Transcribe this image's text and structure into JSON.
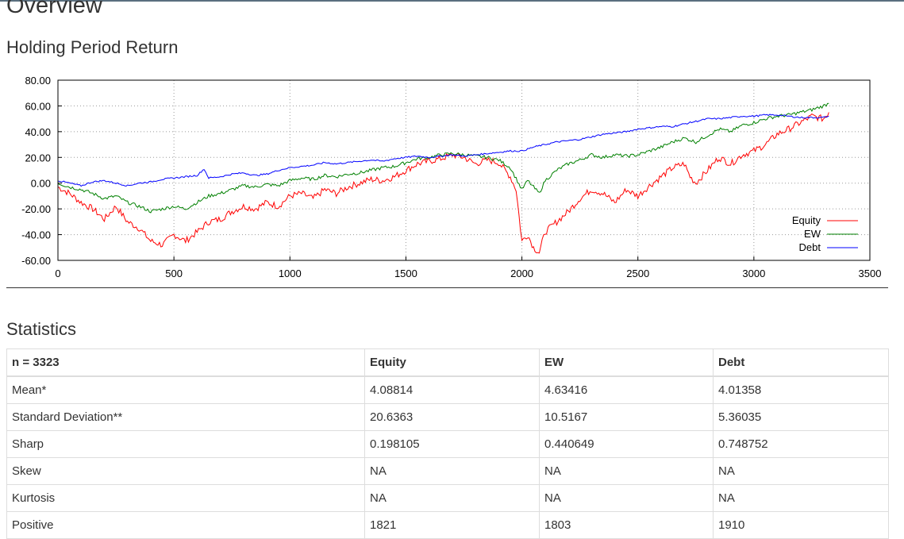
{
  "page": {
    "title": "Overview",
    "chart_section_title": "Holding Period Return",
    "stats_section_title": "Statistics"
  },
  "chart_data": {
    "type": "line",
    "title": "",
    "xlabel": "",
    "ylabel": "",
    "xlim": [
      0,
      3500
    ],
    "ylim": [
      -60,
      80
    ],
    "x_ticks": [
      0,
      500,
      1000,
      1500,
      2000,
      2500,
      3000,
      3500
    ],
    "y_ticks": [
      "-60.00",
      "-40.00",
      "-20.00",
      "0.00",
      "20.00",
      "40.00",
      "60.00",
      "80.00"
    ],
    "grid": true,
    "legend_position": "bottom-right",
    "series": [
      {
        "name": "Equity",
        "color": "#ff0000",
        "x": [
          0,
          50,
          100,
          150,
          200,
          250,
          300,
          350,
          400,
          450,
          500,
          550,
          600,
          650,
          700,
          750,
          800,
          850,
          900,
          950,
          1000,
          1050,
          1100,
          1150,
          1200,
          1250,
          1300,
          1350,
          1400,
          1450,
          1500,
          1550,
          1600,
          1650,
          1700,
          1750,
          1800,
          1850,
          1900,
          1950,
          1975,
          2000,
          2025,
          2050,
          2075,
          2100,
          2150,
          2200,
          2250,
          2300,
          2350,
          2400,
          2450,
          2500,
          2550,
          2600,
          2650,
          2700,
          2725,
          2750,
          2800,
          2850,
          2900,
          2950,
          3000,
          3050,
          3100,
          3150,
          3200,
          3250,
          3300,
          3323
        ],
        "y": [
          -3,
          -8,
          -15,
          -20,
          -28,
          -18,
          -30,
          -35,
          -45,
          -48,
          -40,
          -45,
          -38,
          -30,
          -28,
          -22,
          -18,
          -20,
          -15,
          -18,
          -10,
          -8,
          -12,
          -5,
          -8,
          -3,
          0,
          3,
          2,
          5,
          10,
          15,
          17,
          19,
          22,
          20,
          15,
          18,
          16,
          5,
          -5,
          -45,
          -40,
          -50,
          -54,
          -38,
          -30,
          -22,
          -12,
          -5,
          -8,
          -15,
          -5,
          -10,
          -2,
          5,
          12,
          15,
          5,
          0,
          10,
          20,
          15,
          22,
          25,
          30,
          38,
          42,
          47,
          52,
          50,
          55
        ]
      },
      {
        "name": "EW",
        "color": "#008000",
        "x": [
          0,
          50,
          100,
          150,
          200,
          250,
          300,
          350,
          400,
          450,
          500,
          550,
          600,
          650,
          700,
          750,
          800,
          850,
          900,
          950,
          1000,
          1050,
          1100,
          1150,
          1200,
          1250,
          1300,
          1350,
          1400,
          1450,
          1500,
          1550,
          1600,
          1650,
          1700,
          1750,
          1800,
          1850,
          1900,
          1950,
          2000,
          2025,
          2050,
          2075,
          2100,
          2150,
          2200,
          2250,
          2300,
          2350,
          2400,
          2450,
          2500,
          2550,
          2600,
          2650,
          2700,
          2750,
          2800,
          2850,
          2900,
          2950,
          3000,
          3050,
          3100,
          3150,
          3200,
          3250,
          3300,
          3323
        ],
        "y": [
          0,
          -3,
          -5,
          -8,
          -12,
          -10,
          -15,
          -18,
          -22,
          -20,
          -18,
          -20,
          -15,
          -10,
          -8,
          -5,
          -2,
          -3,
          -1,
          -2,
          2,
          4,
          3,
          6,
          5,
          7,
          8,
          10,
          12,
          13,
          16,
          19,
          20,
          22,
          23,
          22,
          21,
          20,
          18,
          12,
          -5,
          2,
          -3,
          -8,
          2,
          10,
          15,
          18,
          22,
          20,
          22,
          21,
          22,
          25,
          28,
          32,
          35,
          32,
          37,
          42,
          40,
          45,
          47,
          50,
          52,
          53,
          55,
          57,
          60,
          62
        ]
      },
      {
        "name": "Debt",
        "color": "#0000ff",
        "x": [
          0,
          50,
          100,
          150,
          200,
          250,
          300,
          350,
          400,
          450,
          500,
          550,
          600,
          630,
          650,
          700,
          750,
          800,
          850,
          900,
          950,
          1000,
          1050,
          1100,
          1150,
          1200,
          1250,
          1300,
          1350,
          1400,
          1450,
          1500,
          1550,
          1600,
          1650,
          1700,
          1750,
          1800,
          1850,
          1900,
          1950,
          2000,
          2050,
          2100,
          2150,
          2200,
          2250,
          2300,
          2350,
          2400,
          2450,
          2500,
          2550,
          2600,
          2650,
          2700,
          2750,
          2800,
          2850,
          2900,
          2950,
          3000,
          3050,
          3100,
          3150,
          3200,
          3250,
          3300,
          3323
        ],
        "y": [
          2,
          0,
          -2,
          1,
          2,
          0,
          -2,
          0,
          1,
          3,
          4,
          5,
          6,
          11,
          4,
          5,
          7,
          8,
          6,
          7,
          10,
          12,
          13,
          14,
          16,
          15,
          16,
          17,
          18,
          17,
          19,
          20,
          21,
          20,
          21,
          22,
          21,
          22,
          23,
          24,
          25,
          25,
          28,
          30,
          32,
          33,
          34,
          36,
          38,
          39,
          40,
          42,
          43,
          44,
          44,
          46,
          48,
          50,
          50,
          51,
          52,
          52,
          53,
          53,
          52,
          51,
          51,
          51,
          52
        ]
      }
    ]
  },
  "stats": {
    "headers": [
      "n = 3323",
      "Equity",
      "EW",
      "Debt"
    ],
    "rows": [
      [
        "Mean*",
        "4.08814",
        "4.63416",
        "4.01358"
      ],
      [
        "Standard Deviation**",
        "20.6363",
        "10.5167",
        "5.36035"
      ],
      [
        "Sharp",
        "0.198105",
        "0.440649",
        "0.748752"
      ],
      [
        "Skew",
        "NA",
        "NA",
        "NA"
      ],
      [
        "Kurtosis",
        "NA",
        "NA",
        "NA"
      ],
      [
        "Positive",
        "1821",
        "1803",
        "1910"
      ]
    ]
  }
}
